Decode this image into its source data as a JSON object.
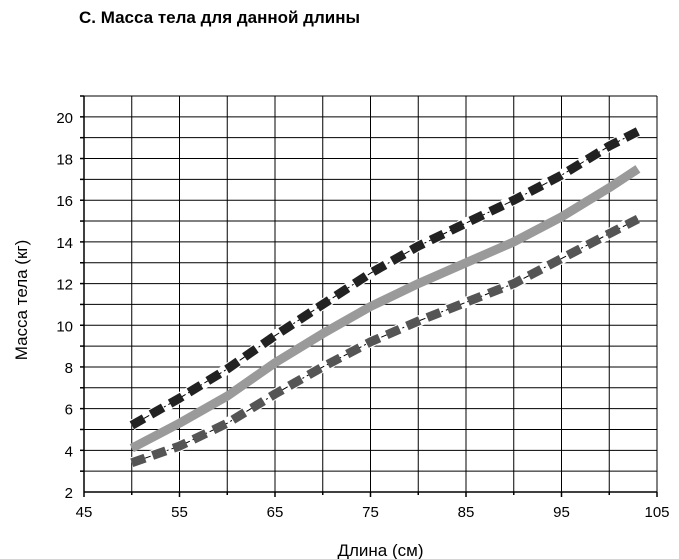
{
  "title": "С. Масса тела для данной длины",
  "chart_data": {
    "type": "line",
    "title": "С. Масса тела для данной длины",
    "xlabel": "Длина (см)",
    "ylabel": "Масса тела (кг)",
    "xlim": [
      45,
      105
    ],
    "ylim": [
      2,
      21
    ],
    "x_ticks": [
      45,
      55,
      65,
      75,
      85,
      95,
      105
    ],
    "y_ticks": [
      2,
      4,
      6,
      8,
      10,
      12,
      14,
      16,
      18,
      20
    ],
    "grid": true,
    "legend": "none",
    "series": [
      {
        "style": "dashed",
        "color": "#222222",
        "x": [
          50,
          55,
          60,
          65,
          70,
          75,
          80,
          85,
          90,
          95,
          100,
          103
        ],
        "y": [
          5.2,
          6.5,
          7.9,
          9.5,
          11.0,
          12.5,
          13.8,
          14.9,
          16.0,
          17.2,
          18.6,
          19.3
        ]
      },
      {
        "style": "solid",
        "color": "#9a9a9a",
        "x": [
          50,
          55,
          60,
          65,
          70,
          75,
          80,
          85,
          90,
          95,
          100,
          103
        ],
        "y": [
          4.1,
          5.3,
          6.6,
          8.2,
          9.6,
          10.9,
          12.0,
          13.0,
          14.0,
          15.2,
          16.6,
          17.5
        ]
      },
      {
        "style": "dashed",
        "color": "#555555",
        "x": [
          50,
          55,
          60,
          65,
          70,
          75,
          80,
          85,
          90,
          95,
          100,
          103
        ],
        "y": [
          3.4,
          4.2,
          5.3,
          6.7,
          8.0,
          9.2,
          10.2,
          11.1,
          12.0,
          13.2,
          14.4,
          15.1
        ]
      }
    ]
  }
}
